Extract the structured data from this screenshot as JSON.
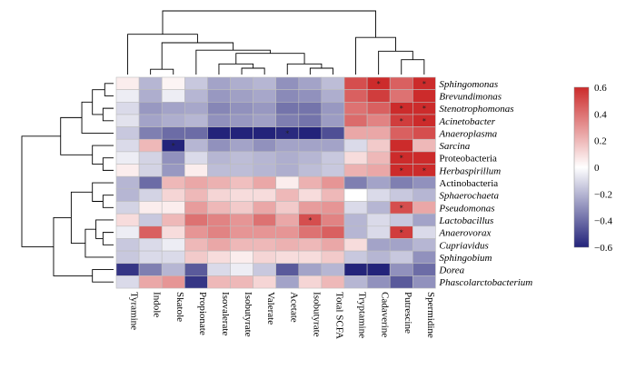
{
  "chart_data": {
    "type": "heatmap",
    "columns": [
      "Tyramine",
      "Indole",
      "Skatole",
      "Propionate",
      "Isovalerate",
      "Isobutyrate",
      "Valerate",
      "Acetate",
      "Isobutyrate",
      "Total SCFA",
      "Tryptamine",
      "Cadaverine",
      "Putrescine",
      "Spermidine"
    ],
    "rows": [
      "Sphingomonas",
      "Brevundimonas",
      "Stenotrophomonas",
      "Acinetobacter",
      "Anaeroplasma",
      "Sarcina",
      "Proteobacteria",
      "Herbaspirillum",
      "Actinobacteria",
      "Sphaerochaeta",
      "Pseudomonas",
      "Lactobacillus",
      "Anaerovorax",
      "Cupriavidus",
      "Sphingobium",
      "Dorea",
      "Phascolarctobacterium"
    ],
    "row_italic": [
      true,
      true,
      true,
      true,
      true,
      true,
      false,
      true,
      false,
      true,
      true,
      true,
      true,
      true,
      true,
      true,
      true
    ],
    "values": [
      [
        0.05,
        -0.2,
        0.03,
        -0.15,
        -0.25,
        -0.22,
        -0.2,
        -0.3,
        -0.25,
        -0.18,
        0.5,
        0.6,
        0.45,
        0.7
      ],
      [
        -0.05,
        -0.22,
        -0.05,
        -0.2,
        -0.28,
        -0.26,
        -0.24,
        -0.32,
        -0.3,
        -0.22,
        0.45,
        0.55,
        0.4,
        0.65
      ],
      [
        -0.1,
        -0.28,
        -0.25,
        -0.24,
        -0.33,
        -0.3,
        -0.28,
        -0.38,
        -0.38,
        -0.28,
        0.4,
        0.45,
        0.6,
        0.7
      ],
      [
        -0.08,
        -0.25,
        -0.22,
        -0.2,
        -0.3,
        -0.28,
        -0.26,
        -0.35,
        -0.38,
        -0.27,
        0.42,
        0.35,
        0.55,
        0.65
      ],
      [
        -0.15,
        -0.35,
        -0.4,
        -0.4,
        -0.6,
        -0.6,
        -0.6,
        -0.58,
        -0.6,
        -0.48,
        0.25,
        0.25,
        0.45,
        0.5
      ],
      [
        -0.1,
        0.2,
        -0.6,
        -0.2,
        -0.3,
        -0.25,
        -0.3,
        -0.25,
        -0.25,
        -0.25,
        -0.1,
        0.15,
        0.6,
        0.2
      ],
      [
        -0.05,
        -0.12,
        -0.3,
        -0.1,
        -0.2,
        -0.18,
        -0.2,
        -0.22,
        -0.2,
        -0.15,
        0.1,
        0.2,
        0.7,
        0.65
      ],
      [
        0.05,
        -0.12,
        -0.28,
        0.05,
        -0.18,
        -0.18,
        -0.2,
        -0.22,
        -0.18,
        -0.15,
        0.22,
        0.25,
        0.7,
        0.7
      ],
      [
        -0.2,
        -0.4,
        0.2,
        0.25,
        0.22,
        0.18,
        0.25,
        0.05,
        0.22,
        0.3,
        -0.35,
        -0.25,
        -0.35,
        -0.3
      ],
      [
        -0.2,
        -0.12,
        0.12,
        0.2,
        0.12,
        0.1,
        0.1,
        0.2,
        0.1,
        0.2,
        0.0,
        -0.1,
        -0.15,
        -0.2
      ],
      [
        -0.12,
        0.05,
        0.05,
        0.28,
        0.2,
        0.15,
        0.25,
        0.15,
        0.28,
        0.3,
        -0.1,
        -0.2,
        0.5,
        0.25
      ],
      [
        0.1,
        -0.15,
        0.2,
        0.4,
        0.35,
        0.3,
        0.4,
        0.25,
        0.5,
        0.35,
        -0.2,
        -0.1,
        -0.15,
        -0.25
      ],
      [
        -0.05,
        0.45,
        0.1,
        0.3,
        0.35,
        0.3,
        0.3,
        0.3,
        0.4,
        0.45,
        -0.2,
        -0.1,
        0.55,
        -0.1
      ],
      [
        -0.15,
        -0.1,
        -0.05,
        0.2,
        0.25,
        0.2,
        0.2,
        0.22,
        0.2,
        0.25,
        0.1,
        -0.25,
        -0.25,
        -0.2
      ],
      [
        -0.15,
        -0.1,
        -0.1,
        0.15,
        0.1,
        0.05,
        0.12,
        0.1,
        0.1,
        0.15,
        -0.15,
        -0.2,
        -0.15,
        -0.3
      ],
      [
        -0.55,
        -0.35,
        -0.2,
        -0.45,
        -0.1,
        -0.05,
        -0.15,
        -0.45,
        -0.25,
        -0.2,
        -0.6,
        -0.65,
        -0.3,
        -0.4
      ],
      [
        -0.1,
        0.25,
        0.3,
        -0.55,
        0.2,
        0.2,
        0.12,
        -0.25,
        0.12,
        0.2,
        -0.2,
        -0.3,
        -0.45,
        -0.3
      ]
    ],
    "significant": [
      [
        0,
        11
      ],
      [
        0,
        13
      ],
      [
        2,
        12
      ],
      [
        2,
        13
      ],
      [
        3,
        12
      ],
      [
        3,
        13
      ],
      [
        4,
        7
      ],
      [
        5,
        2
      ],
      [
        6,
        12
      ],
      [
        7,
        12
      ],
      [
        7,
        13
      ],
      [
        10,
        12
      ],
      [
        11,
        8
      ],
      [
        12,
        12
      ]
    ],
    "colorbar": {
      "min": -0.6,
      "max": 0.6,
      "ticks": [
        0.6,
        0.4,
        0.2,
        0,
        -0.2,
        -0.4,
        -0.6
      ],
      "colors": {
        "low": "#23237a",
        "mid": "#ffffff",
        "high": "#cc2b2b"
      }
    },
    "col_dendrogram": [
      {
        "a": 1,
        "b": 2,
        "h": 5
      },
      {
        "a": 5,
        "b": 6,
        "h": 6
      },
      {
        "a": 4,
        "b": "m1",
        "h": 10
      },
      {
        "a": 8,
        "b": 9,
        "h": 6
      },
      {
        "a": 7,
        "b": "m3",
        "h": 10
      },
      {
        "a": "m2",
        "b": "m4",
        "h": 20
      },
      {
        "a": 3,
        "b": "m5",
        "h": 23
      },
      {
        "a": "m0",
        "b": "m6",
        "h": 30
      },
      {
        "a": 0,
        "b": "m7",
        "h": 38
      },
      {
        "a": 12,
        "b": 13,
        "h": 14
      },
      {
        "a": 11,
        "b": "m9",
        "h": 22
      },
      {
        "a": 10,
        "b": "m10",
        "h": 35
      },
      {
        "a": "m8",
        "b": "m11",
        "h": 60
      }
    ],
    "row_dendrogram": [
      {
        "a": 0,
        "b": 1,
        "h": 5
      },
      {
        "a": 2,
        "b": 3,
        "h": 6
      },
      {
        "a": "m0",
        "b": "m1",
        "h": 12
      },
      {
        "a": "m2",
        "b": 4,
        "h": 18
      },
      {
        "a": 6,
        "b": 7,
        "h": 6
      },
      {
        "a": 5,
        "b": "m4",
        "h": 12
      },
      {
        "a": "m3",
        "b": "m5",
        "h": 30
      },
      {
        "a": 9,
        "b": 10,
        "h": 6
      },
      {
        "a": 8,
        "b": "m7",
        "h": 12
      },
      {
        "a": 12,
        "b": 13,
        "h": 6
      },
      {
        "a": 11,
        "b": "m9",
        "h": 10
      },
      {
        "a": "m10",
        "b": 14,
        "h": 16
      },
      {
        "a": "m8",
        "b": "m11",
        "h": 24
      },
      {
        "a": 15,
        "b": 16,
        "h": 12
      },
      {
        "a": "m12",
        "b": "m13",
        "h": 34
      },
      {
        "a": "m6",
        "b": "m14",
        "h": 52
      }
    ]
  }
}
